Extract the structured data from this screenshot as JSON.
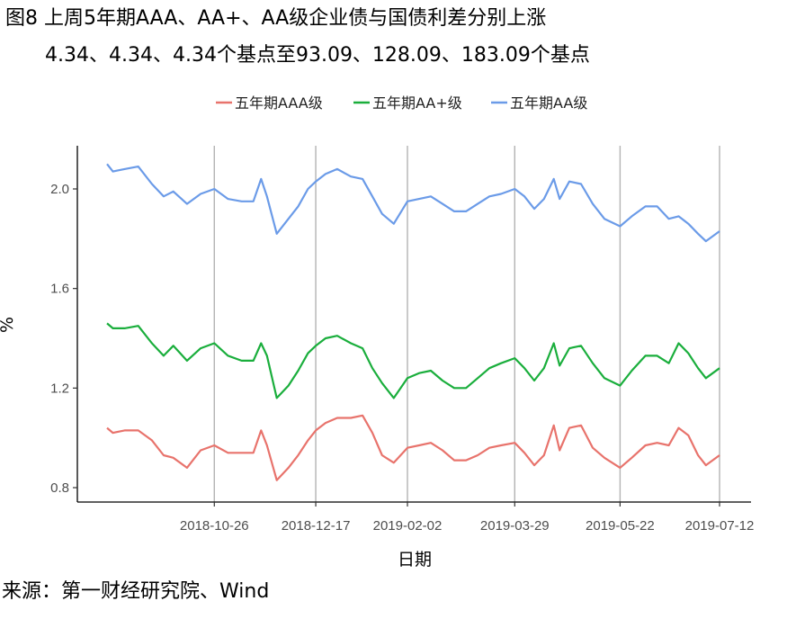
{
  "title": {
    "line1": "图8 上周5年期AAA、AA+、AA级企业债与国债利差分别上涨",
    "line2": "4.34、4.34、4.34个基点至93.09、128.09、183.09个基点"
  },
  "source": "来源：第一财经研究院、Wind",
  "chart_data": {
    "type": "line",
    "title": "图8 上周5年期AAA、AA+、AA级企业债与国债利差分别上涨 4.34、4.34、4.34个基点至93.09、128.09、183.09个基点",
    "xlabel": "日期",
    "ylabel": "%",
    "xlim": [
      "2018-09-01",
      "2019-07-12"
    ],
    "ylim": [
      0.78,
      2.12
    ],
    "yticks": [
      0.8,
      1.2,
      1.6,
      2.0
    ],
    "ytick_labels": [
      "0.8",
      "1.2",
      "1.6",
      "2.0"
    ],
    "xticks": [
      "2018-10-26",
      "2018-12-17",
      "2019-02-02",
      "2019-03-29",
      "2019-05-22",
      "2019-07-12"
    ],
    "grid": "vertical at x ticks",
    "legend_position": "top",
    "series": [
      {
        "name": "五年期AAA级",
        "color": "#e8736c",
        "points": [
          [
            "2018-09-01",
            1.04
          ],
          [
            "2018-09-04",
            1.02
          ],
          [
            "2018-09-10",
            1.03
          ],
          [
            "2018-09-17",
            1.03
          ],
          [
            "2018-09-24",
            0.99
          ],
          [
            "2018-09-30",
            0.93
          ],
          [
            "2018-10-05",
            0.92
          ],
          [
            "2018-10-12",
            0.88
          ],
          [
            "2018-10-19",
            0.95
          ],
          [
            "2018-10-26",
            0.97
          ],
          [
            "2018-11-02",
            0.94
          ],
          [
            "2018-11-09",
            0.94
          ],
          [
            "2018-11-15",
            0.94
          ],
          [
            "2018-11-19",
            1.03
          ],
          [
            "2018-11-22",
            0.97
          ],
          [
            "2018-11-27",
            0.83
          ],
          [
            "2018-12-03",
            0.88
          ],
          [
            "2018-12-08",
            0.93
          ],
          [
            "2018-12-13",
            0.99
          ],
          [
            "2018-12-17",
            1.03
          ],
          [
            "2018-12-22",
            1.06
          ],
          [
            "2018-12-28",
            1.08
          ],
          [
            "2019-01-04",
            1.08
          ],
          [
            "2019-01-10",
            1.09
          ],
          [
            "2019-01-15",
            1.02
          ],
          [
            "2019-01-20",
            0.93
          ],
          [
            "2019-01-26",
            0.9
          ],
          [
            "2019-02-02",
            0.96
          ],
          [
            "2019-02-08",
            0.97
          ],
          [
            "2019-02-14",
            0.98
          ],
          [
            "2019-02-20",
            0.95
          ],
          [
            "2019-02-26",
            0.91
          ],
          [
            "2019-03-04",
            0.91
          ],
          [
            "2019-03-10",
            0.93
          ],
          [
            "2019-03-16",
            0.96
          ],
          [
            "2019-03-22",
            0.97
          ],
          [
            "2019-03-29",
            0.98
          ],
          [
            "2019-04-03",
            0.94
          ],
          [
            "2019-04-08",
            0.89
          ],
          [
            "2019-04-13",
            0.93
          ],
          [
            "2019-04-18",
            1.05
          ],
          [
            "2019-04-21",
            0.95
          ],
          [
            "2019-04-26",
            1.04
          ],
          [
            "2019-05-02",
            1.05
          ],
          [
            "2019-05-08",
            0.96
          ],
          [
            "2019-05-14",
            0.92
          ],
          [
            "2019-05-22",
            0.88
          ],
          [
            "2019-05-28",
            0.92
          ],
          [
            "2019-06-04",
            0.97
          ],
          [
            "2019-06-10",
            0.98
          ],
          [
            "2019-06-16",
            0.97
          ],
          [
            "2019-06-21",
            1.04
          ],
          [
            "2019-06-26",
            1.01
          ],
          [
            "2019-07-01",
            0.93
          ],
          [
            "2019-07-05",
            0.89
          ],
          [
            "2019-07-12",
            0.93
          ]
        ]
      },
      {
        "name": "五年期AA+级",
        "color": "#1aae3c",
        "points": [
          [
            "2018-09-01",
            1.46
          ],
          [
            "2018-09-04",
            1.44
          ],
          [
            "2018-09-10",
            1.44
          ],
          [
            "2018-09-17",
            1.45
          ],
          [
            "2018-09-24",
            1.38
          ],
          [
            "2018-09-30",
            1.33
          ],
          [
            "2018-10-05",
            1.37
          ],
          [
            "2018-10-12",
            1.31
          ],
          [
            "2018-10-19",
            1.36
          ],
          [
            "2018-10-26",
            1.38
          ],
          [
            "2018-11-02",
            1.33
          ],
          [
            "2018-11-09",
            1.31
          ],
          [
            "2018-11-15",
            1.31
          ],
          [
            "2018-11-19",
            1.38
          ],
          [
            "2018-11-22",
            1.33
          ],
          [
            "2018-11-27",
            1.16
          ],
          [
            "2018-12-03",
            1.21
          ],
          [
            "2018-12-08",
            1.27
          ],
          [
            "2018-12-13",
            1.34
          ],
          [
            "2018-12-17",
            1.37
          ],
          [
            "2018-12-22",
            1.4
          ],
          [
            "2018-12-28",
            1.41
          ],
          [
            "2019-01-04",
            1.38
          ],
          [
            "2019-01-10",
            1.36
          ],
          [
            "2019-01-15",
            1.28
          ],
          [
            "2019-01-20",
            1.22
          ],
          [
            "2019-01-26",
            1.16
          ],
          [
            "2019-02-02",
            1.24
          ],
          [
            "2019-02-08",
            1.26
          ],
          [
            "2019-02-14",
            1.27
          ],
          [
            "2019-02-20",
            1.23
          ],
          [
            "2019-02-26",
            1.2
          ],
          [
            "2019-03-04",
            1.2
          ],
          [
            "2019-03-10",
            1.24
          ],
          [
            "2019-03-16",
            1.28
          ],
          [
            "2019-03-22",
            1.3
          ],
          [
            "2019-03-29",
            1.32
          ],
          [
            "2019-04-03",
            1.28
          ],
          [
            "2019-04-08",
            1.23
          ],
          [
            "2019-04-13",
            1.28
          ],
          [
            "2019-04-18",
            1.38
          ],
          [
            "2019-04-21",
            1.29
          ],
          [
            "2019-04-26",
            1.36
          ],
          [
            "2019-05-02",
            1.37
          ],
          [
            "2019-05-08",
            1.3
          ],
          [
            "2019-05-14",
            1.24
          ],
          [
            "2019-05-22",
            1.21
          ],
          [
            "2019-05-28",
            1.27
          ],
          [
            "2019-06-04",
            1.33
          ],
          [
            "2019-06-10",
            1.33
          ],
          [
            "2019-06-16",
            1.3
          ],
          [
            "2019-06-21",
            1.38
          ],
          [
            "2019-06-26",
            1.34
          ],
          [
            "2019-07-01",
            1.28
          ],
          [
            "2019-07-05",
            1.24
          ],
          [
            "2019-07-12",
            1.28
          ]
        ]
      },
      {
        "name": "五年期AA级",
        "color": "#6b9be8",
        "points": [
          [
            "2018-09-01",
            2.1
          ],
          [
            "2018-09-04",
            2.07
          ],
          [
            "2018-09-10",
            2.08
          ],
          [
            "2018-09-17",
            2.09
          ],
          [
            "2018-09-24",
            2.02
          ],
          [
            "2018-09-30",
            1.97
          ],
          [
            "2018-10-05",
            1.99
          ],
          [
            "2018-10-12",
            1.94
          ],
          [
            "2018-10-19",
            1.98
          ],
          [
            "2018-10-26",
            2.0
          ],
          [
            "2018-11-02",
            1.96
          ],
          [
            "2018-11-09",
            1.95
          ],
          [
            "2018-11-15",
            1.95
          ],
          [
            "2018-11-19",
            2.04
          ],
          [
            "2018-11-22",
            1.97
          ],
          [
            "2018-11-27",
            1.82
          ],
          [
            "2018-12-03",
            1.88
          ],
          [
            "2018-12-08",
            1.93
          ],
          [
            "2018-12-13",
            2.0
          ],
          [
            "2018-12-17",
            2.03
          ],
          [
            "2018-12-22",
            2.06
          ],
          [
            "2018-12-28",
            2.08
          ],
          [
            "2019-01-04",
            2.05
          ],
          [
            "2019-01-10",
            2.04
          ],
          [
            "2019-01-15",
            1.97
          ],
          [
            "2019-01-20",
            1.9
          ],
          [
            "2019-01-26",
            1.86
          ],
          [
            "2019-02-02",
            1.95
          ],
          [
            "2019-02-08",
            1.96
          ],
          [
            "2019-02-14",
            1.97
          ],
          [
            "2019-02-20",
            1.94
          ],
          [
            "2019-02-26",
            1.91
          ],
          [
            "2019-03-04",
            1.91
          ],
          [
            "2019-03-10",
            1.94
          ],
          [
            "2019-03-16",
            1.97
          ],
          [
            "2019-03-22",
            1.98
          ],
          [
            "2019-03-29",
            2.0
          ],
          [
            "2019-04-03",
            1.97
          ],
          [
            "2019-04-08",
            1.92
          ],
          [
            "2019-04-13",
            1.96
          ],
          [
            "2019-04-18",
            2.04
          ],
          [
            "2019-04-21",
            1.96
          ],
          [
            "2019-04-26",
            2.03
          ],
          [
            "2019-05-02",
            2.02
          ],
          [
            "2019-05-08",
            1.94
          ],
          [
            "2019-05-14",
            1.88
          ],
          [
            "2019-05-22",
            1.85
          ],
          [
            "2019-05-28",
            1.89
          ],
          [
            "2019-06-04",
            1.93
          ],
          [
            "2019-06-10",
            1.93
          ],
          [
            "2019-06-16",
            1.88
          ],
          [
            "2019-06-21",
            1.89
          ],
          [
            "2019-06-26",
            1.86
          ],
          [
            "2019-07-01",
            1.82
          ],
          [
            "2019-07-05",
            1.79
          ],
          [
            "2019-07-12",
            1.83
          ]
        ]
      }
    ]
  }
}
